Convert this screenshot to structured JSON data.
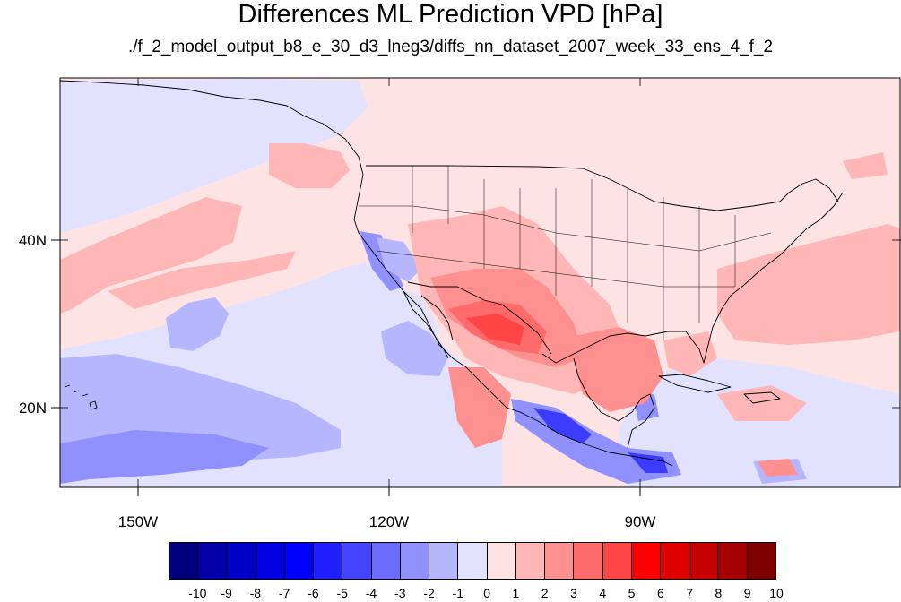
{
  "title": "Differences ML Prediction VPD [hPa]",
  "subtitle": "./f_2_model_output_b8_e_30_d3_lneg3/diffs_nn_dataset_2007_week_33_ens_4_f_2",
  "map": {
    "lon_range": [
      -160,
      -60
    ],
    "lat_range": [
      10,
      59
    ],
    "lat_labels": [
      "40N",
      "20N"
    ],
    "lon_labels": [
      "150W",
      "120W",
      "90W"
    ],
    "background_color": "#fde3e3",
    "coastline_color": "#000000"
  },
  "colorbar": {
    "labels": [
      "-10",
      "-9",
      "-8",
      "-7",
      "-6",
      "-5",
      "-4",
      "-3",
      "-2",
      "-1",
      "0",
      "1",
      "2",
      "3",
      "4",
      "5",
      "6",
      "7",
      "8",
      "9",
      "10"
    ],
    "colors": [
      "#00007f",
      "#0000a6",
      "#0000c6",
      "#0000e0",
      "#0000ff",
      "#1f1fff",
      "#4545ff",
      "#6b6bff",
      "#9090ff",
      "#b6b6ff",
      "#e2e2ff",
      "#ffe2e2",
      "#ffb6b6",
      "#ff9090",
      "#ff6b6b",
      "#ff4545",
      "#ff0000",
      "#e00000",
      "#c60000",
      "#a60000",
      "#7f0000"
    ]
  }
}
